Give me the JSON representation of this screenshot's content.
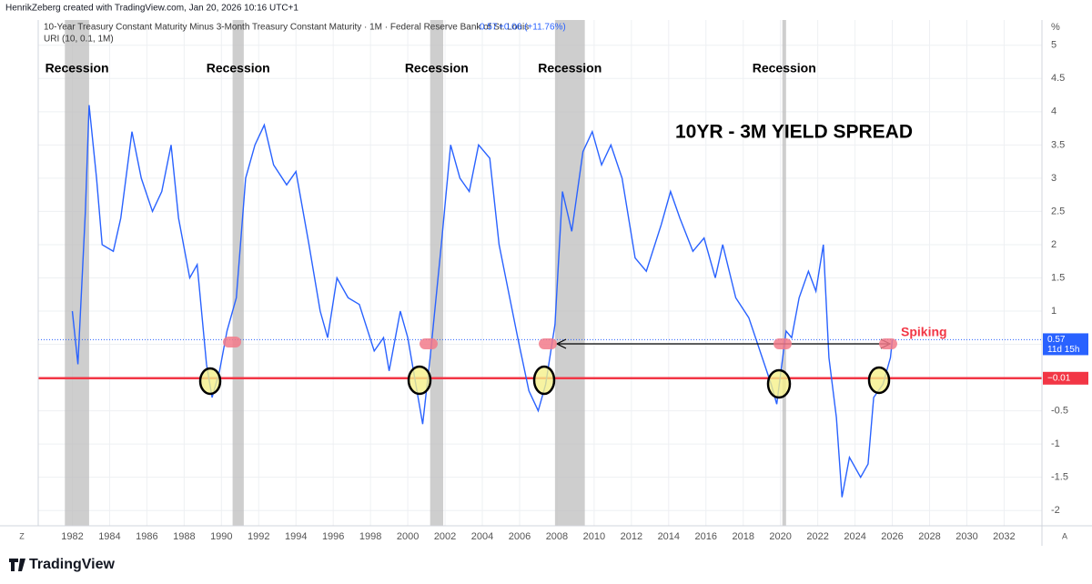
{
  "chart_data": {
    "type": "line",
    "header": "HenrikZeberg created with TradingView.com, Jan 20, 2026 10:16 UTC+1",
    "legend_title": "10-Year Treasury Constant Maturity Minus 3-Month Treasury Constant Maturity · 1M · Federal Reserve Bank of St. Louis",
    "legend_value": "0.57",
    "legend_change": "+0.06 (+11.76%)",
    "indicator": "URI (10, 0.1, 1M)",
    "title": "10YR - 3M YIELD SPREAD",
    "annotation": "Spiking",
    "y_unit": "%",
    "brand": "TradingView",
    "buttons": [
      "Z",
      "A"
    ],
    "xlim": [
      1980.17,
      2034.03
    ],
    "ylim": [
      -2.23,
      5.38
    ],
    "xticks": [
      1982,
      1984,
      1986,
      1988,
      1990,
      1992,
      1994,
      1996,
      1998,
      2000,
      2002,
      2004,
      2006,
      2008,
      2010,
      2012,
      2014,
      2016,
      2018,
      2020,
      2022,
      2024,
      2026,
      2028,
      2030,
      2032
    ],
    "yticks": [
      5,
      4.5,
      4,
      3.5,
      3,
      2.5,
      2,
      1.5,
      1,
      0.5,
      0,
      -0.5,
      -1,
      -1.5,
      -2
    ],
    "grid": true,
    "shaded_periods": [
      {
        "label": "Recession",
        "start": 1981.6,
        "end": 1982.9
      },
      {
        "label": "Recession",
        "start": 1990.6,
        "end": 1991.2
      },
      {
        "label": "Recession",
        "start": 2001.2,
        "end": 2001.9
      },
      {
        "label": "Recession",
        "start": 2007.9,
        "end": 2009.5
      },
      {
        "label": "Recession",
        "start": 2020.1,
        "end": 2020.3
      }
    ],
    "reference_lines": [
      {
        "value": -0.01,
        "label": "−0.01",
        "color": "#f23645"
      },
      {
        "value": 0.57,
        "label": "0.57",
        "sublabel": "11d 15h",
        "color": "#2962ff"
      }
    ],
    "series": [
      {
        "name": "10Y-3M",
        "color": "#2962ff",
        "x": [
          1982.0,
          1982.3,
          1982.7,
          1982.9,
          1983.3,
          1983.6,
          1984.2,
          1984.6,
          1985.2,
          1985.7,
          1986.3,
          1986.8,
          1987.3,
          1987.7,
          1988.3,
          1988.7,
          1989.2,
          1989.5,
          1989.9,
          1990.3,
          1990.8,
          1991.3,
          1991.8,
          1992.3,
          1992.8,
          1993.5,
          1994.0,
          1994.7,
          1995.3,
          1995.7,
          1996.2,
          1996.8,
          1997.4,
          1998.2,
          1998.7,
          1999.0,
          1999.6,
          2000.0,
          2000.8,
          2001.2,
          2001.8,
          2002.3,
          2002.8,
          2003.3,
          2003.8,
          2004.4,
          2004.9,
          2005.4,
          2005.9,
          2006.5,
          2007.0,
          2007.4,
          2007.9,
          2008.3,
          2008.8,
          2009.4,
          2009.9,
          2010.4,
          2010.9,
          2011.5,
          2012.2,
          2012.8,
          2013.6,
          2014.1,
          2014.6,
          2015.3,
          2015.9,
          2016.5,
          2016.9,
          2017.6,
          2018.3,
          2018.9,
          2019.5,
          2019.8,
          2020.3,
          2020.6,
          2021.0,
          2021.5,
          2021.9,
          2022.3,
          2022.6,
          2023.0,
          2023.3,
          2023.7,
          2024.3,
          2024.7,
          2025.0,
          2025.5,
          2025.9,
          2026.0
        ],
        "values": [
          1.0,
          0.2,
          2.5,
          4.1,
          3.0,
          2.0,
          1.9,
          2.4,
          3.7,
          3.0,
          2.5,
          2.8,
          3.5,
          2.4,
          1.5,
          1.7,
          0.2,
          -0.3,
          0.1,
          0.7,
          1.2,
          3.0,
          3.5,
          3.8,
          3.2,
          2.9,
          3.1,
          2.0,
          1.0,
          0.6,
          1.5,
          1.2,
          1.1,
          0.4,
          0.6,
          0.1,
          1.0,
          0.6,
          -0.7,
          0.3,
          2.0,
          3.5,
          3.0,
          2.8,
          3.5,
          3.3,
          2.0,
          1.3,
          0.6,
          -0.2,
          -0.5,
          -0.1,
          0.8,
          2.8,
          2.2,
          3.4,
          3.7,
          3.2,
          3.5,
          3.0,
          1.8,
          1.6,
          2.3,
          2.8,
          2.4,
          1.9,
          2.1,
          1.5,
          2.0,
          1.2,
          0.9,
          0.4,
          -0.1,
          -0.4,
          0.7,
          0.6,
          1.2,
          1.6,
          1.3,
          2.0,
          0.3,
          -0.6,
          -1.8,
          -1.2,
          -1.5,
          -1.3,
          -0.3,
          -0.1,
          0.3,
          0.57
        ]
      }
    ]
  }
}
